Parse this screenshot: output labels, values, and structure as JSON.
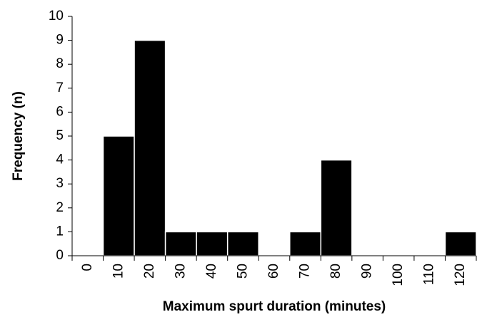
{
  "chart_data": {
    "type": "bar",
    "x_label": "Maximum spurt duration (minutes)",
    "y_label": "Frequency (n)",
    "categories": [
      "0",
      "10",
      "20",
      "30",
      "40",
      "50",
      "60",
      "70",
      "80",
      "90",
      "100",
      "110",
      "120"
    ],
    "values": [
      0,
      5,
      9,
      1,
      1,
      1,
      0,
      1,
      4,
      0,
      0,
      0,
      1
    ],
    "color": "#000000",
    "ylim": [
      0,
      10
    ],
    "yticks": [
      0,
      1,
      2,
      3,
      4,
      5,
      6,
      7,
      8,
      9,
      10
    ],
    "grid": false
  }
}
